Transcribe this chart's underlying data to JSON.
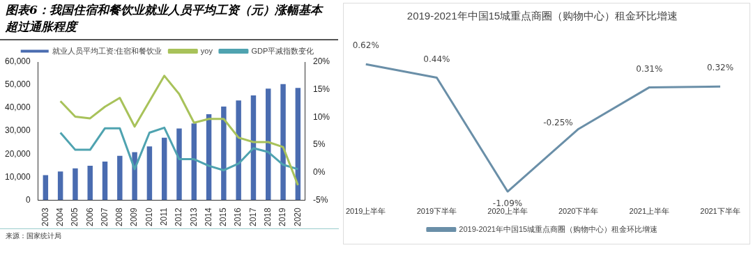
{
  "chart_data": [
    {
      "type": "bar",
      "title": "图表6：我国住宿和餐饮业就业人员平均工资（元）涨幅基本超过通胀程度",
      "categories": [
        "2003",
        "2004",
        "2005",
        "2006",
        "2007",
        "2008",
        "2009",
        "2010",
        "2011",
        "2012",
        "2013",
        "2014",
        "2015",
        "2016",
        "2017",
        "2018",
        "2019",
        "2020"
      ],
      "series": [
        {
          "name": "就业人员平均工资:住宿和餐饮业",
          "type": "bar",
          "color": "#4a6cb0",
          "values": [
            10800,
            12400,
            13800,
            14900,
            16700,
            19200,
            20800,
            23300,
            27100,
            31100,
            33300,
            37300,
            40600,
            43300,
            45500,
            48400,
            50400,
            48700
          ]
        },
        {
          "name": "yoy",
          "type": "line",
          "axis": "y2",
          "color": "#a8c25a",
          "values": [
            null,
            12.9,
            10.1,
            9.8,
            11.9,
            13.5,
            8.3,
            12.9,
            17.5,
            14.2,
            9.0,
            9.7,
            9.7,
            6.3,
            5.5,
            5.5,
            4.6,
            -2.3
          ]
        },
        {
          "name": "GDP平减指数变化",
          "type": "line",
          "axis": "y2",
          "color": "#4fa3b0",
          "values": [
            null,
            7.2,
            4.1,
            4.1,
            8.0,
            8.0,
            0.6,
            7.2,
            8.1,
            2.4,
            2.4,
            1.2,
            0.4,
            1.6,
            4.4,
            3.7,
            1.4,
            0.6
          ]
        }
      ],
      "ylim": [
        0,
        60000
      ],
      "yticks": [
        0,
        {
          "value": 10000,
          "label": "10,000"
        },
        {
          "value": 20000,
          "label": "20,000"
        },
        {
          "value": 30000,
          "label": "30,000"
        },
        {
          "value": 40000,
          "label": "40,000"
        },
        {
          "value": 50000,
          "label": "50,000"
        },
        {
          "value": 60000,
          "label": "60,000"
        }
      ],
      "y2lim": [
        -5,
        20
      ],
      "y2ticks": [
        {
          "value": -5,
          "label": "-5%"
        },
        {
          "value": 0,
          "label": "0%"
        },
        {
          "value": 5,
          "label": "5%"
        },
        {
          "value": 10,
          "label": "10%"
        },
        {
          "value": 15,
          "label": "15%"
        },
        {
          "value": 20,
          "label": "20%"
        }
      ],
      "grid": false,
      "legend": "top",
      "marker": "none",
      "line_style": "solid",
      "annotations": [
        "来源：国家统计局"
      ]
    },
    {
      "type": "line",
      "title": "2019-2021年中国15城重点商圈（购物中心）租金环比增速",
      "categories": [
        "2019上半年",
        "2019下半年",
        "2020上半年",
        "2020下半年",
        "2021上半年",
        "2021下半年"
      ],
      "series": [
        {
          "name": "2019-2021年中国15城重点商圈（购物中心）租金环比增速",
          "color": "#6a8fa8",
          "values": [
            0.62,
            0.44,
            -1.09,
            -0.25,
            0.31,
            0.32
          ],
          "value_labels": [
            "0.62%",
            "0.44%",
            "-1.09%",
            "-0.25%",
            "0.31%",
            "0.32%"
          ]
        }
      ],
      "tick_labels": "x",
      "grid": false,
      "legend": "bottom",
      "marker": "none",
      "line_style": "solid"
    }
  ]
}
